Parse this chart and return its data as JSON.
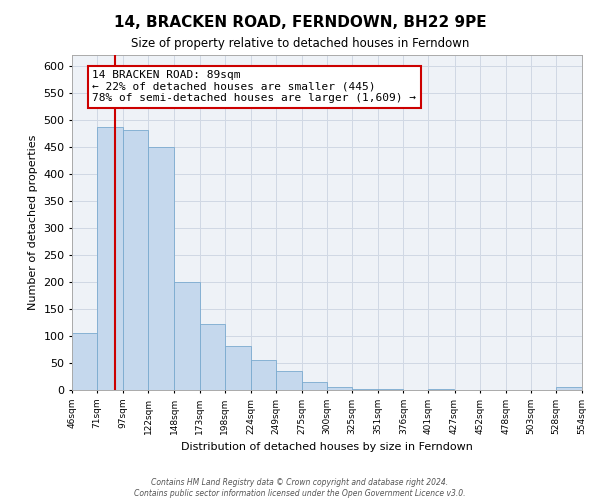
{
  "title": "14, BRACKEN ROAD, FERNDOWN, BH22 9PE",
  "subtitle": "Size of property relative to detached houses in Ferndown",
  "xlabel": "Distribution of detached houses by size in Ferndown",
  "ylabel": "Number of detached properties",
  "bin_edges": [
    46,
    71,
    97,
    122,
    148,
    173,
    198,
    224,
    249,
    275,
    300,
    325,
    351,
    376,
    401,
    427,
    452,
    478,
    503,
    528,
    554
  ],
  "bin_heights": [
    105,
    487,
    482,
    450,
    200,
    122,
    81,
    55,
    35,
    15,
    5,
    2,
    1,
    0,
    1,
    0,
    0,
    0,
    0,
    5
  ],
  "bar_color": "#c5d8ed",
  "bar_edge_color": "#7aaacf",
  "vline_color": "#cc0000",
  "vline_x": 89,
  "annotation_text": "14 BRACKEN ROAD: 89sqm\n← 22% of detached houses are smaller (445)\n78% of semi-detached houses are larger (1,609) →",
  "annotation_box_facecolor": "#ffffff",
  "annotation_box_edgecolor": "#cc0000",
  "ylim": [
    0,
    620
  ],
  "yticks": [
    0,
    50,
    100,
    150,
    200,
    250,
    300,
    350,
    400,
    450,
    500,
    550,
    600
  ],
  "footnote": "Contains HM Land Registry data © Crown copyright and database right 2024.\nContains public sector information licensed under the Open Government Licence v3.0.",
  "tick_labels": [
    "46sqm",
    "71sqm",
    "97sqm",
    "122sqm",
    "148sqm",
    "173sqm",
    "198sqm",
    "224sqm",
    "249sqm",
    "275sqm",
    "300sqm",
    "325sqm",
    "351sqm",
    "376sqm",
    "401sqm",
    "427sqm",
    "452sqm",
    "478sqm",
    "503sqm",
    "528sqm",
    "554sqm"
  ],
  "title_fontsize": 11,
  "subtitle_fontsize": 8.5,
  "xlabel_fontsize": 8,
  "ylabel_fontsize": 8,
  "xtick_fontsize": 6.5,
  "ytick_fontsize": 8,
  "footnote_fontsize": 5.5,
  "annotation_fontsize": 8,
  "plot_bg_color": "#eef2f7",
  "fig_bg_color": "#ffffff",
  "grid_color": "#d0d8e4"
}
